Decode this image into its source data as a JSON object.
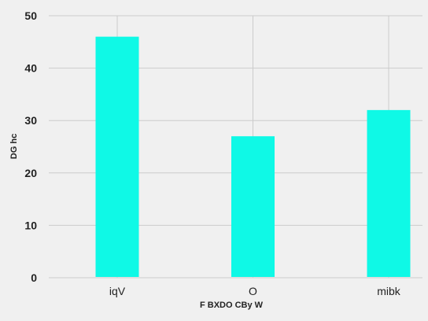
{
  "chart_data": {
    "type": "bar",
    "categories": [
      "iqV",
      "O",
      "mibk"
    ],
    "values": [
      46,
      27,
      32
    ],
    "xlabel": "F BXDO CBy W",
    "ylabel": "DG hc",
    "ylim": [
      0,
      50
    ],
    "yticks": [
      0,
      10,
      20,
      30,
      40,
      50
    ],
    "grid": true,
    "bar_color": "#0ff9e6",
    "background": "#f0f0f0",
    "grid_color": "#cbcbcb"
  }
}
